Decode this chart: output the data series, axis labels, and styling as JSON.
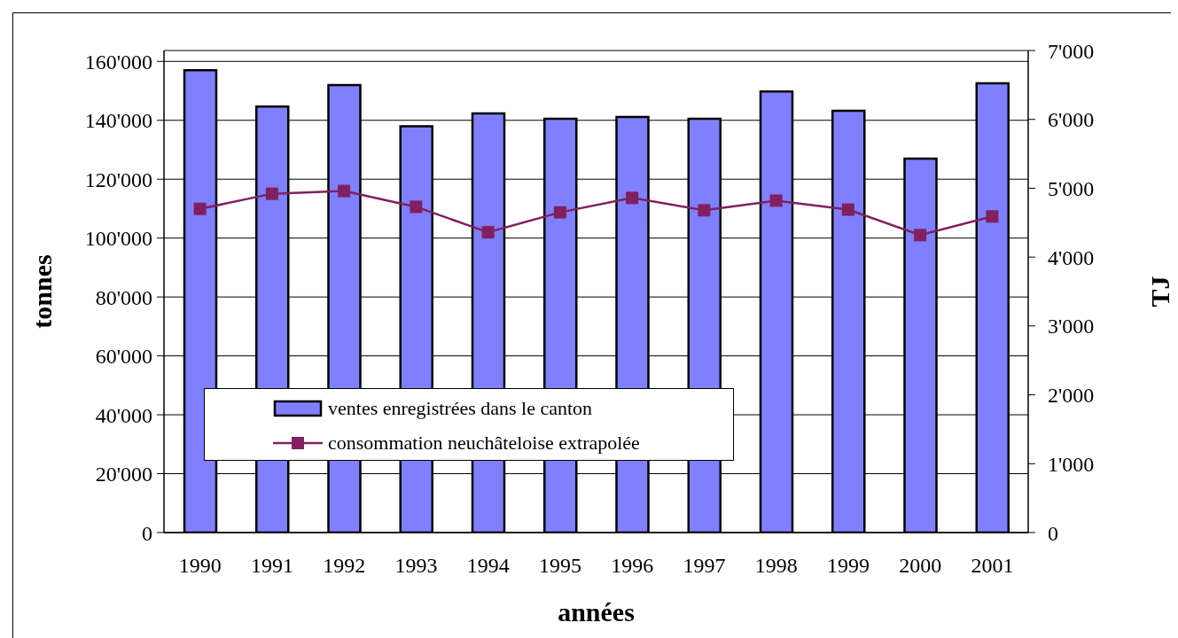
{
  "chart_data": {
    "type": "bar",
    "xlabel": "années",
    "ylabel": "tonnes",
    "y2label": "TJ",
    "categories": [
      "1990",
      "1991",
      "1992",
      "1993",
      "1994",
      "1995",
      "1996",
      "1997",
      "1998",
      "1999",
      "2000",
      "2001"
    ],
    "series": [
      {
        "name": "ventes enregistrées dans le canton",
        "color": "#8080ff",
        "values": [
          157000,
          144700,
          152000,
          138000,
          142300,
          140500,
          141100,
          140500,
          149800,
          143200,
          127000,
          152600
        ]
      },
      {
        "name": "consommation neuchâteloise extrapolée",
        "type": "line",
        "axis": "y2",
        "color": "#802060",
        "values": [
          4700,
          4920,
          4960,
          4730,
          4360,
          4650,
          4860,
          4680,
          4820,
          4690,
          4320,
          4590
        ]
      }
    ],
    "ylim": [
      0,
      163700
    ],
    "yticks": [
      0,
      {
        "value": 20000,
        "label": "20'000"
      },
      {
        "value": 40000,
        "label": "40'000"
      },
      {
        "value": 60000,
        "label": "60'000"
      },
      {
        "value": 80000,
        "label": "80'000"
      },
      {
        "value": 100000,
        "label": "100'000"
      },
      {
        "value": 120000,
        "label": "120'000"
      },
      {
        "value": 140000,
        "label": "140'000"
      },
      {
        "value": 160000,
        "label": "160'000"
      }
    ],
    "y2lim": [
      0,
      7000
    ],
    "y2ticks": [
      0,
      {
        "value": 1000,
        "label": "1'000"
      },
      {
        "value": 2000,
        "label": "2'000"
      },
      {
        "value": 3000,
        "label": "3'000"
      },
      {
        "value": 4000,
        "label": "4'000"
      },
      {
        "value": 5000,
        "label": "5'000"
      },
      {
        "value": 6000,
        "label": "6'000"
      },
      {
        "value": 7000,
        "label": "7'000"
      }
    ],
    "grid": "y",
    "legend": "bottom left",
    "marker": "square"
  }
}
